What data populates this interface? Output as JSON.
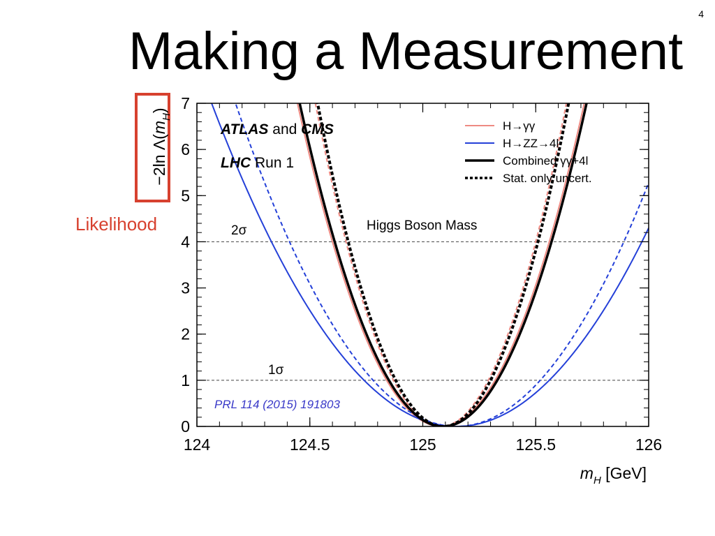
{
  "slide": {
    "number": "4",
    "title": "Making a Measurement",
    "highlight_label": "Likelihood",
    "highlight_color": "#d7412f"
  },
  "chart_data": {
    "type": "line",
    "title": "Higgs Boson Mass",
    "xlabel": "m_H [GeV]",
    "ylabel": "−2ln Λ(m_H)",
    "xlim": [
      124,
      126
    ],
    "ylim": [
      0,
      7
    ],
    "x_ticks": [
      124,
      124.5,
      125,
      125.5,
      126
    ],
    "x_tick_labels": [
      "124",
      "124.5",
      "125",
      "125.5",
      "126"
    ],
    "y_ticks": [
      0,
      1,
      2,
      3,
      4,
      5,
      6,
      7
    ],
    "y_tick_labels": [
      "0",
      "1",
      "2",
      "3",
      "4",
      "5",
      "6",
      "7"
    ],
    "annotations": {
      "experiment": "ATLAS",
      "experiment_join": " and ",
      "experiment2": "CMS",
      "run_prefix": "LHC",
      "run_suffix": " Run 1",
      "reference": "PRL 114 (2015) 191803",
      "one_sigma_label": "1σ",
      "two_sigma_label": "2σ"
    },
    "reference_lines": [
      {
        "y": 1,
        "label": "1σ"
      },
      {
        "y": 4,
        "label": "2σ"
      }
    ],
    "legend": {
      "position": "top-right",
      "entries": [
        {
          "label": "H→γγ",
          "color": "#ee8a82",
          "style": "solid"
        },
        {
          "label": "H→ZZ→4l",
          "color": "#2440d8",
          "style": "solid"
        },
        {
          "label": "Combined γγ+4l",
          "color": "#000000",
          "style": "solid"
        },
        {
          "label": "Stat. only uncert.",
          "color": "#000000",
          "style": "dashed"
        }
      ]
    },
    "series": [
      {
        "name": "H→γγ",
        "color": "#ee8a82",
        "style": "solid",
        "width": 2,
        "center": 125.08,
        "width_1sigma": 0.24
      },
      {
        "name": "H→γγ",
        "color": "#ee8a82",
        "style": "dashed",
        "width": 2,
        "center": 125.08,
        "width_1sigma": 0.21
      },
      {
        "name": "H→ZZ→4l",
        "color": "#2440d8",
        "style": "solid",
        "width": 2,
        "center": 125.15,
        "width_1sigma": 0.41
      },
      {
        "name": "H→ZZ→4l",
        "color": "#2440d8",
        "style": "dashed",
        "width": 2,
        "center": 125.15,
        "width_1sigma": 0.37
      },
      {
        "name": "Combined γγ+4l",
        "color": "#000000",
        "style": "solid",
        "width": 3.5,
        "center": 125.09,
        "width_1sigma": 0.24
      },
      {
        "name": "Combined γγ+4l",
        "color": "#000000",
        "style": "dashed",
        "width": 4,
        "center": 125.09,
        "width_1sigma": 0.21
      }
    ]
  }
}
